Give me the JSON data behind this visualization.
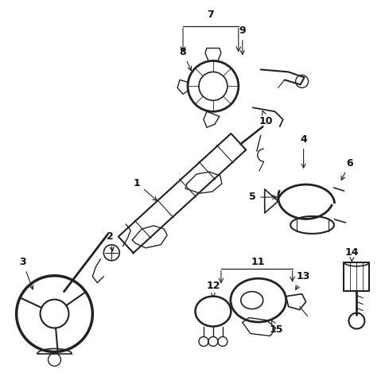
{
  "bg_color": "#f5f5f0",
  "figsize": [
    4.85,
    4.93
  ],
  "dpi": 100,
  "line_color": "#222222",
  "text_color": "#111111",
  "lw_main": 1.0,
  "lw_detail": 0.7,
  "lw_thin": 0.5,
  "font_size_label": 9
}
